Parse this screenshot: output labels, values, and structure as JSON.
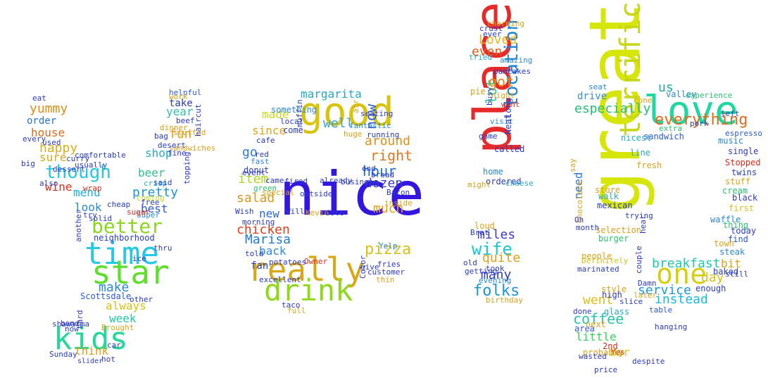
{
  "words": [
    {
      "t": "nice",
      "c": "#3316e0"
    },
    {
      "t": "good",
      "c": "#d8c40e"
    },
    {
      "t": "great",
      "c": "#d6e60a"
    },
    {
      "t": "place",
      "c": "#e62a2a"
    },
    {
      "t": "love",
      "c": "#1ed8a0"
    },
    {
      "t": "one",
      "c": "#d7d012"
    },
    {
      "t": "really",
      "c": "#d8a818"
    },
    {
      "t": "drink",
      "c": "#8fd81a"
    },
    {
      "t": "time",
      "c": "#25c8e6"
    },
    {
      "t": "star",
      "c": "#5ce02a"
    },
    {
      "t": "kids",
      "c": "#25d89a"
    },
    {
      "t": "better",
      "c": "#8ad81e"
    },
    {
      "t": "terrific",
      "c": "#c8d618"
    },
    {
      "t": "though",
      "c": "#25c6e6"
    },
    {
      "t": "yummy",
      "c": "#d89018"
    },
    {
      "t": "happy",
      "c": "#d8b01c"
    },
    {
      "t": "everything",
      "c": "#e06a1a"
    },
    {
      "t": "especially",
      "c": "#20c070"
    },
    {
      "t": "breakfast",
      "c": "#1ec8a8"
    },
    {
      "t": "wife",
      "c": "#18c8d8"
    },
    {
      "t": "chicken",
      "c": "#e03e1a"
    },
    {
      "t": "pizza",
      "c": "#d8c018"
    },
    {
      "t": "hour",
      "c": "#1c6ee0"
    },
    {
      "t": "right",
      "c": "#e0781c"
    },
    {
      "t": "around",
      "c": "#e09018"
    },
    {
      "t": "miles",
      "c": "#3c3ad0"
    },
    {
      "t": "folks",
      "c": "#1a96d8"
    },
    {
      "t": "location",
      "c": "#1c84d8"
    },
    {
      "t": "lot",
      "c": "#2ac88a"
    },
    {
      "t": "Loved",
      "c": "#e8b81a"
    },
    {
      "t": "even",
      "c": "#e05a1a"
    },
    {
      "t": "got",
      "c": "#e08a18"
    },
    {
      "t": "quite",
      "c": "#e0a018"
    },
    {
      "t": "many",
      "c": "#2a3ac8"
    },
    {
      "t": "margarita",
      "c": "#24a8c8"
    },
    {
      "t": "Marisa",
      "c": "#1e7ad8"
    },
    {
      "t": "since",
      "c": "#e0a21a"
    },
    {
      "t": "made",
      "c": "#c8d81a"
    },
    {
      "t": "well",
      "c": "#3aa0d8"
    },
    {
      "t": "now",
      "c": "#2a5ad8"
    },
    {
      "t": "dozen",
      "c": "#3a3ac8"
    },
    {
      "t": "much",
      "c": "#e8a018"
    },
    {
      "t": "salad",
      "c": "#d89a18"
    },
    {
      "t": "item",
      "c": "#a8d818"
    },
    {
      "t": "back",
      "c": "#2a8ad8"
    },
    {
      "t": "fan",
      "c": "#2a3ac8"
    },
    {
      "t": "new",
      "c": "#2a68d8"
    },
    {
      "t": "go",
      "c": "#2a7ad8"
    },
    {
      "t": "coffee",
      "c": "#26c8a8"
    },
    {
      "t": "service",
      "c": "#1a98d8"
    },
    {
      "t": "instead",
      "c": "#1ab8e0"
    },
    {
      "t": "day",
      "c": "#d8c018"
    },
    {
      "t": "bit",
      "c": "#e0a01a"
    },
    {
      "t": "little",
      "c": "#38d058"
    },
    {
      "t": "bar",
      "c": "#c8d81a"
    },
    {
      "t": "drive",
      "c": "#3a8ad8"
    },
    {
      "t": "us",
      "c": "#1ea8a0"
    },
    {
      "t": "need",
      "c": "#2a78d8"
    },
    {
      "t": "went",
      "c": "#e0c018"
    },
    {
      "t": "menu",
      "c": "#1ab0e0"
    },
    {
      "t": "wine",
      "c": "#e02a1a"
    },
    {
      "t": "look",
      "c": "#2a8ad8"
    },
    {
      "t": "pretty",
      "c": "#1c96d8"
    },
    {
      "t": "best",
      "c": "#2a5ad8"
    },
    {
      "t": "beer",
      "c": "#30c090"
    },
    {
      "t": "shop",
      "c": "#2aa8c8"
    },
    {
      "t": "fun",
      "c": "#e8a018"
    },
    {
      "t": "year",
      "c": "#30c0a8"
    },
    {
      "t": "take",
      "c": "#2a3aa8"
    },
    {
      "t": "order",
      "c": "#2a70d8"
    },
    {
      "t": "house",
      "c": "#e06a1a"
    },
    {
      "t": "sure",
      "c": "#d8a818"
    },
    {
      "t": "make",
      "c": "#2a88d8"
    },
    {
      "t": "always",
      "c": "#d8c018"
    },
    {
      "t": "week",
      "c": "#20c8a8"
    },
    {
      "t": "think",
      "c": "#e0a018"
    },
    {
      "t": "neighborhood",
      "c": "#2a3ac8"
    },
    {
      "t": "Scottsdale",
      "c": "#2a5ad8"
    },
    {
      "t": "shawarma",
      "c": "#2a3ac8"
    },
    {
      "t": "Brought",
      "c": "#d8a818"
    },
    {
      "t": "Sunday",
      "c": "#2a3ac8"
    },
    {
      "t": "slider",
      "c": "#2a3ac8"
    },
    {
      "t": "sandwiches",
      "c": "#e0a018"
    },
    {
      "t": "helpful",
      "c": "#2a5ad8"
    },
    {
      "t": "coming",
      "c": "#c8d818"
    },
    {
      "t": "crisp",
      "c": "#1ab0c8"
    },
    {
      "t": "Super",
      "c": "#2a88d8"
    },
    {
      "t": "selection",
      "c": "#e0a018"
    },
    {
      "t": "burger",
      "c": "#2ac070"
    },
    {
      "t": "people",
      "c": "#e0a018"
    },
    {
      "t": "store",
      "c": "#e0a018"
    },
    {
      "t": "walk",
      "c": "#2aa8c8"
    },
    {
      "t": "mexican",
      "c": "#2a3ac8"
    },
    {
      "t": "nicest",
      "c": "#1ab0c8"
    },
    {
      "t": "sandwich",
      "c": "#2a5ad8"
    },
    {
      "t": "line",
      "c": "#2aa8c8"
    },
    {
      "t": "fresh",
      "c": "#e0a018"
    },
    {
      "t": "music",
      "c": "#2a88d8"
    },
    {
      "t": "single",
      "c": "#2a3ac8"
    },
    {
      "t": "Stopped",
      "c": "#e02a1a"
    },
    {
      "t": "twins",
      "c": "#2a3ac8"
    },
    {
      "t": "stuff",
      "c": "#e0a018"
    },
    {
      "t": "cream",
      "c": "#2ac070"
    },
    {
      "t": "first",
      "c": "#d8c018"
    },
    {
      "t": "waffle",
      "c": "#2a88d8"
    },
    {
      "t": "today",
      "c": "#2a3ac8"
    },
    {
      "t": "find",
      "c": "#2a5ad8"
    },
    {
      "t": "steak",
      "c": "#2a88d8"
    },
    {
      "t": "town",
      "c": "#e0a018"
    },
    {
      "t": "thing",
      "c": "#2ac070"
    },
    {
      "t": "baked",
      "c": "#2a3ac8"
    },
    {
      "t": "enough",
      "c": "#2a3ac8"
    },
    {
      "t": "glass",
      "c": "#2aa8c8"
    },
    {
      "t": "area",
      "c": "#2a5ad8"
    },
    {
      "t": "next",
      "c": "#e0a018"
    },
    {
      "t": "2nd",
      "c": "#e02a1a"
    },
    {
      "t": "probably",
      "c": "#e0a018"
    },
    {
      "t": "price",
      "c": "#2a3ac8"
    },
    {
      "t": "high",
      "c": "#2a3ac8"
    },
    {
      "t": "style",
      "c": "#e0a018"
    },
    {
      "t": "slice",
      "c": "#2a3ac8"
    },
    {
      "t": "table",
      "c": "#2a5ad8"
    },
    {
      "t": "later",
      "c": "#e0a018"
    },
    {
      "t": "Damn",
      "c": "#2a3ac8"
    },
    {
      "t": "hear",
      "c": "#2a3ac8"
    },
    {
      "t": "Chocolate",
      "c": "#e0a018"
    },
    {
      "t": "Definitely",
      "c": "#d8c018"
    },
    {
      "t": "valley",
      "c": "#2a88d8"
    },
    {
      "t": "experience",
      "c": "#2ac070"
    },
    {
      "t": "espresso",
      "c": "#2a5ad8"
    },
    {
      "t": "left",
      "c": "#2a3ac8"
    },
    {
      "t": "seat",
      "c": "#2a88d8"
    },
    {
      "t": "cone",
      "c": "#e0a018"
    },
    {
      "t": "extra",
      "c": "#2ac070"
    },
    {
      "t": "pork",
      "c": "#2a3ac8"
    },
    {
      "t": "black",
      "c": "#2a3ac8"
    },
    {
      "t": "charming",
      "c": "#e0a018"
    },
    {
      "t": "crust",
      "c": "#2a3ac8"
    },
    {
      "t": "ever",
      "c": "#2a3ac8"
    },
    {
      "t": "tried",
      "c": "#2aa8c8"
    },
    {
      "t": "amazing",
      "c": "#2a88d8"
    },
    {
      "t": "pancakes",
      "c": "#2a3ac8"
    },
    {
      "t": "pie",
      "c": "#e0a018"
    },
    {
      "t": "night",
      "c": "#e0a018"
    },
    {
      "t": "visit",
      "c": "#2a88d8"
    },
    {
      "t": "want",
      "c": "#e02a1a"
    },
    {
      "t": "called",
      "c": "#2a3ac8"
    },
    {
      "t": "home",
      "c": "#2a88d8"
    },
    {
      "t": "ordered",
      "c": "#2a3ac8"
    },
    {
      "t": "cheese",
      "c": "#2aa8c8"
    },
    {
      "t": "loud",
      "c": "#e0a018"
    },
    {
      "t": "took",
      "c": "#2a3ac8"
    },
    {
      "t": "getting",
      "c": "#2a3ac8"
    },
    {
      "t": "evening",
      "c": "#2a88d8"
    },
    {
      "t": "birthday",
      "c": "#e0a018"
    },
    {
      "t": "Brat",
      "c": "#2a3ac8"
    },
    {
      "t": "old",
      "c": "#2a3ac8"
    },
    {
      "t": "might",
      "c": "#e0a018"
    },
    {
      "t": "game",
      "c": "#2a3ac8"
    },
    {
      "t": "busy",
      "c": "#2a3ac8"
    },
    {
      "t": "Neat",
      "c": "#2a3ac8"
    },
    {
      "t": "long",
      "c": "#2a3ac8"
    },
    {
      "t": "something",
      "c": "#2a88d8"
    },
    {
      "t": "cafe",
      "c": "#2a3ac8"
    },
    {
      "t": "fast",
      "c": "#2a88d8"
    },
    {
      "t": "red",
      "c": "#2a3ac8"
    },
    {
      "t": "donut",
      "c": "#2a3ac8"
    },
    {
      "t": "event",
      "c": "#2a3ac8"
    },
    {
      "t": "green",
      "c": "#2ac070"
    },
    {
      "t": "special",
      "c": "#e0a018"
    },
    {
      "t": "Wish",
      "c": "#2a3ac8"
    },
    {
      "t": "morning",
      "c": "#2a3ac8"
    },
    {
      "t": "came",
      "c": "#2a3ac8"
    },
    {
      "t": "fired",
      "c": "#2a3ac8"
    },
    {
      "t": "already",
      "c": "#2a3ac8"
    },
    {
      "t": "business",
      "c": "#2a3ac8"
    },
    {
      "t": "come",
      "c": "#2a3ac8"
    },
    {
      "t": "local",
      "c": "#2a3ac8"
    },
    {
      "t": "huge",
      "c": "#e0a018"
    },
    {
      "t": "fantastic",
      "c": "#2a88d8"
    },
    {
      "t": "seating",
      "c": "#2a3ac8"
    },
    {
      "t": "running",
      "c": "#2a3ac8"
    },
    {
      "t": "end",
      "c": "#2a3ac8"
    },
    {
      "t": "bread",
      "c": "#2a3ac8"
    },
    {
      "t": "Bacon",
      "c": "#2a3ac8"
    },
    {
      "t": "inside",
      "c": "#e0a018"
    },
    {
      "t": "outside",
      "c": "#2a3ac8"
    },
    {
      "t": "Owner",
      "c": "#e02a1a"
    },
    {
      "t": "Will",
      "c": "#2a3ac8"
    },
    {
      "t": "Kevin",
      "c": "#e0a018"
    },
    {
      "t": "date",
      "c": "#2a3ac8"
    },
    {
      "t": "Yelp",
      "c": "#2a88d8"
    },
    {
      "t": "fries",
      "c": "#2a3ac8"
    },
    {
      "t": "give",
      "c": "#2a3ac8"
    },
    {
      "t": "customer",
      "c": "#2a3ac8"
    },
    {
      "t": "thin",
      "c": "#e0a018"
    },
    {
      "t": "taco",
      "c": "#2a3ac8"
    },
    {
      "t": "potatoes",
      "c": "#2a3ac8"
    },
    {
      "t": "Color",
      "c": "#2a3ac8"
    },
    {
      "t": "full",
      "c": "#e0a018"
    },
    {
      "t": "excellent",
      "c": "#2a3ac8"
    },
    {
      "t": "told",
      "c": "#2a3ac8"
    },
    {
      "t": "air",
      "c": "#e0a018"
    },
    {
      "t": "muffin",
      "c": "#2a3ac8"
    },
    {
      "t": "eat",
      "c": "#2a3ac8"
    },
    {
      "t": "big",
      "c": "#2a3ac8"
    },
    {
      "t": "also",
      "c": "#2a3ac8"
    },
    {
      "t": "used",
      "c": "#2a3ac8"
    },
    {
      "t": "every",
      "c": "#2a3ac8"
    },
    {
      "t": "comfortable",
      "c": "#2a3ac8"
    },
    {
      "t": "curry",
      "c": "#2a3ac8"
    },
    {
      "t": "usually",
      "c": "#2a3ac8"
    },
    {
      "t": "dessert",
      "c": "#2a3ac8"
    },
    {
      "t": "wrap",
      "c": "#e02a1a"
    },
    {
      "t": "cheap",
      "c": "#2a3ac8"
    },
    {
      "t": "try",
      "c": "#2a3ac8"
    },
    {
      "t": "solid",
      "c": "#2a3ac8"
    },
    {
      "t": "another",
      "c": "#2a3ac8"
    },
    {
      "t": "sugar",
      "c": "#e02a1a"
    },
    {
      "t": "free",
      "c": "#2a3ac8"
    },
    {
      "t": "said",
      "c": "#2a3ac8"
    },
    {
      "t": "topping",
      "c": "#2a3ac8"
    },
    {
      "t": "fine",
      "c": "#2a3ac8"
    },
    {
      "t": "desert",
      "c": "#2a3ac8"
    },
    {
      "t": "bag",
      "c": "#2a3ac8"
    },
    {
      "t": "dinner",
      "c": "#e0a018"
    },
    {
      "t": "stuffed",
      "c": "#e0a018"
    },
    {
      "t": "beef",
      "c": "#2a3ac8"
    },
    {
      "t": "work",
      "c": "#e0a018"
    },
    {
      "t": "haircut",
      "c": "#2a3ac8"
    },
    {
      "t": "thru",
      "c": "#2a3ac8"
    },
    {
      "t": "ice",
      "c": "#2a3ac8"
    },
    {
      "t": "other",
      "c": "#2a3ac8"
    },
    {
      "t": "car",
      "c": "#2a3ac8"
    },
    {
      "t": "band",
      "c": "#2a3ac8"
    },
    {
      "t": "now",
      "c": "#2a3ac8"
    },
    {
      "t": "hard",
      "c": "#2a3ac8"
    },
    {
      "t": "hot",
      "c": "#2a3ac8"
    },
    {
      "t": "say",
      "c": "#e0a018"
    },
    {
      "t": "Oh",
      "c": "#2a3ac8"
    },
    {
      "t": "month",
      "c": "#2a3ac8"
    },
    {
      "t": "trying",
      "c": "#2a3ac8"
    },
    {
      "t": "marinated",
      "c": "#2a3ac8"
    },
    {
      "t": "done",
      "c": "#2a3ac8"
    },
    {
      "t": "wasted",
      "c": "#2a3ac8"
    },
    {
      "t": "couple",
      "c": "#2a3ac8"
    },
    {
      "t": "Yes",
      "c": "#e02a1a"
    },
    {
      "t": "despite",
      "c": "#2a3ac8"
    },
    {
      "t": "hanging",
      "c": "#2a3ac8"
    },
    {
      "t": "still",
      "c": "#2a3ac8"
    },
    {
      "t": "parties",
      "c": "#2a3ac8"
    },
    {
      "t": "away",
      "c": "#e0a018"
    },
    {
      "t": "interior",
      "c": "#2a3ac8"
    },
    {
      "t": "croissant",
      "c": "#2a3ac8"
    }
  ]
}
